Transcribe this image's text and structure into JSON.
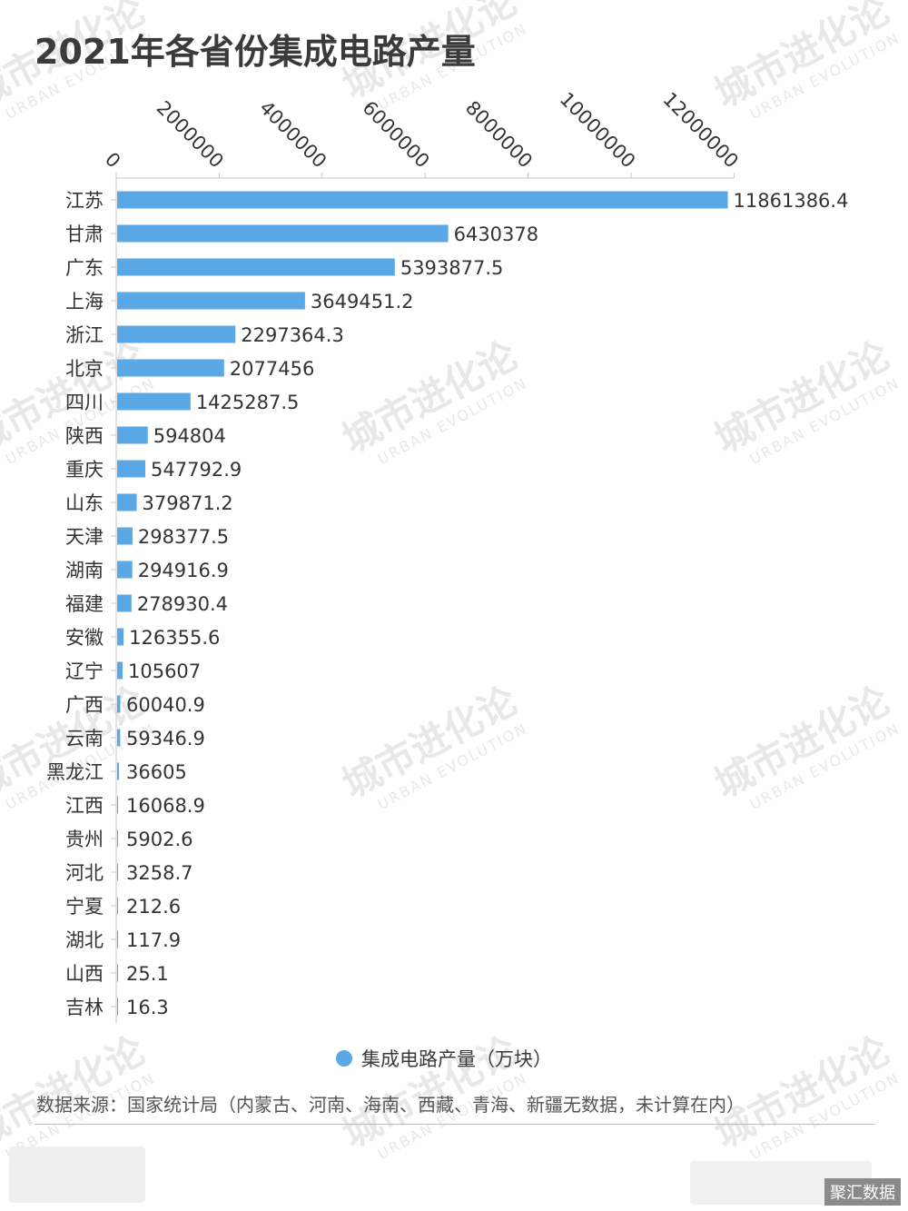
{
  "title": "2021年各省份集成电路产量",
  "legend_label": "集成电路产量（万块）",
  "source": "数据来源：国家统计局（内蒙古、河南、海南、西藏、青海、新疆无数据，未计算在内）",
  "watermark": {
    "cn": "城市进化论",
    "en": "URBAN EVOLUTION"
  },
  "badge": "聚汇数据",
  "colors": {
    "bar": "#5aa9e6",
    "axis": "#c8c8c8",
    "text": "#333333"
  },
  "chart_data": {
    "type": "bar",
    "orientation": "horizontal",
    "title": "2021年各省份集成电路产量",
    "xlim": [
      0,
      12000000
    ],
    "x_ticks": [
      0,
      2000000,
      4000000,
      6000000,
      8000000,
      10000000,
      12000000
    ],
    "x_tick_labels": [
      "0",
      "2000000",
      "4000000",
      "6000000",
      "8000000",
      "10000000",
      "12000000"
    ],
    "x_axis_position": "top",
    "grid": false,
    "legend_position": "bottom",
    "categories": [
      "江苏",
      "甘肃",
      "广东",
      "上海",
      "浙江",
      "北京",
      "四川",
      "陕西",
      "重庆",
      "山东",
      "天津",
      "湖南",
      "福建",
      "安徽",
      "辽宁",
      "广西",
      "云南",
      "黑龙江",
      "江西",
      "贵州",
      "河北",
      "宁夏",
      "湖北",
      "山西",
      "吉林"
    ],
    "series": [
      {
        "name": "集成电路产量（万块）",
        "values": [
          11861386.4,
          6430378,
          5393877.5,
          3649451.2,
          2297364.3,
          2077456,
          1425287.5,
          594804,
          547792.9,
          379871.2,
          298377.5,
          294916.9,
          278930.4,
          126355.6,
          105607,
          60040.9,
          59346.9,
          36605,
          16068.9,
          5902.6,
          3258.7,
          212.6,
          117.9,
          25.1,
          16.3
        ],
        "labels": [
          "11861386.4",
          "6430378",
          "5393877.5",
          "3649451.2",
          "2297364.3",
          "2077456",
          "1425287.5",
          "594804",
          "547792.9",
          "379871.2",
          "298377.5",
          "294916.9",
          "278930.4",
          "126355.6",
          "105607",
          "60040.9",
          "59346.9",
          "36605",
          "16068.9",
          "5902.6",
          "3258.7",
          "212.6",
          "117.9",
          "25.1",
          "16.3"
        ]
      }
    ]
  }
}
